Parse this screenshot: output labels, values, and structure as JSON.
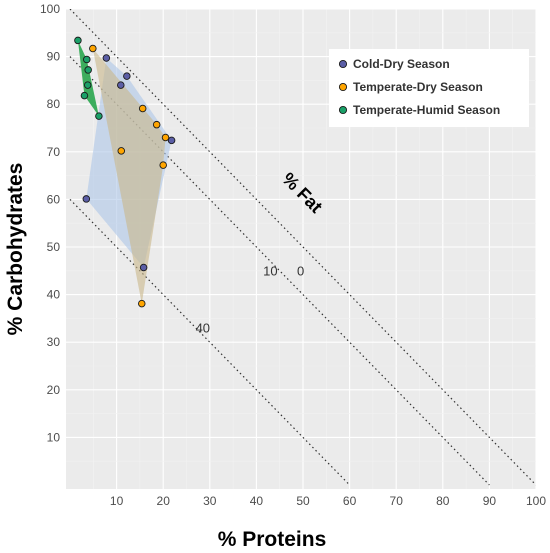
{
  "chart_data": {
    "type": "scatter",
    "xlabel": "% Proteins",
    "ylabel": "% Carbohydrates",
    "xlim": [
      0,
      100
    ],
    "ylim": [
      0,
      100
    ],
    "x_ticks": [
      10,
      20,
      30,
      40,
      50,
      60,
      70,
      80,
      90,
      100
    ],
    "y_ticks": [
      10,
      20,
      30,
      40,
      50,
      60,
      70,
      80,
      90,
      100
    ],
    "grid": true,
    "legend_position": "top-right",
    "fat_axis": {
      "title": "% Fat",
      "lines": [
        {
          "fat": 0,
          "label": "0"
        },
        {
          "fat": 10,
          "label": "10"
        },
        {
          "fat": 40,
          "label": "40"
        }
      ]
    },
    "series": [
      {
        "name": "Cold-Dry Season",
        "color": "#5b5ea6",
        "fill": "#aec7e8",
        "points": [
          {
            "x": 7.8,
            "y": 89.7
          },
          {
            "x": 12.2,
            "y": 85.9
          },
          {
            "x": 10.9,
            "y": 84.0
          },
          {
            "x": 21.8,
            "y": 72.4
          },
          {
            "x": 15.8,
            "y": 45.7
          },
          {
            "x": 3.5,
            "y": 60.1
          }
        ]
      },
      {
        "name": "Temperate-Dry Season",
        "color": "#ffa500",
        "fill": "#c9b78a",
        "points": [
          {
            "x": 4.9,
            "y": 91.7
          },
          {
            "x": 15.6,
            "y": 79.1
          },
          {
            "x": 18.6,
            "y": 75.7
          },
          {
            "x": 20.5,
            "y": 73.0
          },
          {
            "x": 11.0,
            "y": 70.2
          },
          {
            "x": 20.0,
            "y": 67.2
          },
          {
            "x": 15.4,
            "y": 38.1
          }
        ]
      },
      {
        "name": "Temperate-Humid Season",
        "color": "#1aa068",
        "fill": "#33aa55",
        "points": [
          {
            "x": 1.7,
            "y": 93.4
          },
          {
            "x": 3.6,
            "y": 89.4
          },
          {
            "x": 3.9,
            "y": 87.2
          },
          {
            "x": 3.8,
            "y": 84.0
          },
          {
            "x": 3.1,
            "y": 81.8
          },
          {
            "x": 6.2,
            "y": 77.5
          }
        ]
      }
    ]
  }
}
